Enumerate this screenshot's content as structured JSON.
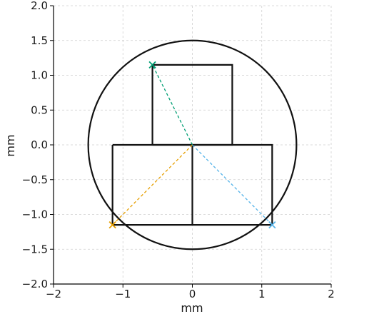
{
  "chart_data": {
    "type": "line",
    "title": "",
    "xlabel": "mm",
    "ylabel": "mm",
    "xlim": [
      -2,
      2
    ],
    "ylim": [
      -2,
      2
    ],
    "x_ticks": [
      -2,
      -1,
      0,
      1,
      2
    ],
    "x_tick_labels": [
      "−2",
      "−1",
      "0",
      "1",
      "2"
    ],
    "y_ticks": [
      -2,
      -1.5,
      -1,
      -0.5,
      0,
      0.5,
      1,
      1.5,
      2
    ],
    "y_tick_labels": [
      "−2.0",
      "−1.5",
      "−1.0",
      "−0.5",
      "0.0",
      "0.5",
      "1.0",
      "1.5",
      "2.0"
    ],
    "grid": true,
    "aspect": "equal",
    "outline_color": "#111111",
    "circle": {
      "center": [
        0,
        0
      ],
      "radius": 1.5
    },
    "shapes": [
      {
        "name": "upper block",
        "points": [
          [
            -0.575,
            0
          ],
          [
            -0.575,
            1.15
          ],
          [
            0.575,
            1.15
          ],
          [
            0.575,
            0
          ],
          [
            -0.575,
            0
          ]
        ]
      },
      {
        "name": "lower block",
        "points": [
          [
            -1.15,
            0
          ],
          [
            1.15,
            0
          ],
          [
            1.15,
            -1.15
          ],
          [
            -1.15,
            -1.15
          ],
          [
            -1.15,
            0
          ]
        ]
      },
      {
        "name": "center divider",
        "points": [
          [
            0,
            0
          ],
          [
            0,
            -1.15
          ]
        ]
      }
    ],
    "dashed_lines": [
      {
        "color": "#009e73",
        "from": [
          0,
          0
        ],
        "to": [
          -0.575,
          1.15
        ]
      },
      {
        "color": "#e69f00",
        "from": [
          0,
          0
        ],
        "to": [
          -1.15,
          -1.15
        ]
      },
      {
        "color": "#56b4e9",
        "from": [
          0,
          0
        ],
        "to": [
          1.15,
          -1.15
        ]
      }
    ],
    "markers": [
      {
        "symbol": "x",
        "color": "#009e73",
        "x": -0.575,
        "y": 1.15
      },
      {
        "symbol": "x",
        "color": "#e69f00",
        "x": -1.15,
        "y": -1.15
      },
      {
        "symbol": "x",
        "color": "#56b4e9",
        "x": 1.15,
        "y": -1.15
      }
    ]
  }
}
